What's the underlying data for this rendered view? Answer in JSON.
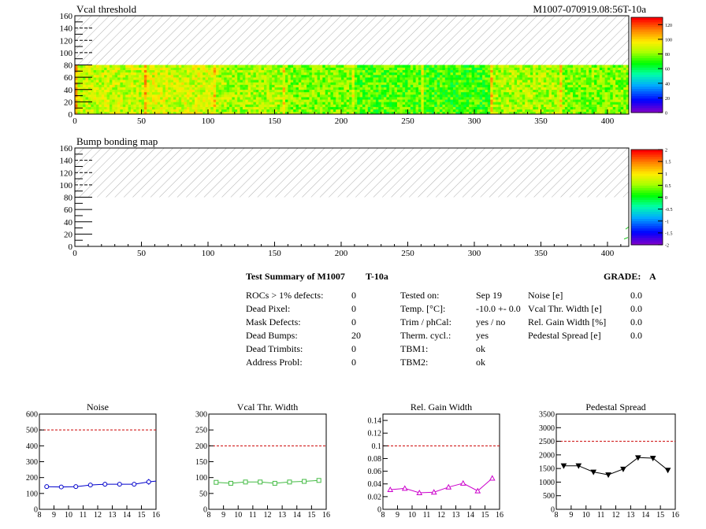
{
  "chart_data": [
    {
      "type": "heatmap",
      "title": "Vcal threshold",
      "run_label": "M1007-070919.08:56T-10a",
      "xlim": [
        0,
        416
      ],
      "ylim": [
        0,
        160
      ],
      "x_ticks": [
        0,
        50,
        100,
        150,
        200,
        250,
        300,
        350,
        400
      ],
      "y_ticks": [
        0,
        20,
        40,
        60,
        80,
        100,
        120,
        140,
        160
      ],
      "filled_rows": [
        0,
        80
      ],
      "roc_width": 52,
      "hatched_region": [
        80,
        160
      ],
      "colorbar_ticks": [
        0,
        20,
        40,
        60,
        80,
        100,
        120
      ],
      "colorbar_range": [
        0,
        130
      ],
      "roc_mean_levels": [
        88,
        90,
        84,
        80,
        74,
        72,
        84,
        80
      ]
    },
    {
      "type": "heatmap",
      "title": "Bump bonding map",
      "xlim": [
        0,
        416
      ],
      "ylim": [
        0,
        160
      ],
      "x_ticks": [
        0,
        50,
        100,
        150,
        200,
        250,
        300,
        350,
        400
      ],
      "y_ticks": [
        0,
        20,
        40,
        60,
        80,
        100,
        120,
        140,
        160
      ],
      "hatched_region": [
        80,
        160
      ],
      "colorbar_ticks": [
        -2,
        -1.5,
        -1,
        -0.5,
        0,
        0.5,
        1,
        1.5,
        2
      ],
      "colorbar_range": [
        -2,
        2
      ]
    },
    {
      "type": "line",
      "title": "Noise",
      "xlim": [
        8,
        16
      ],
      "ylim": [
        0,
        600
      ],
      "x_ticks": [
        8,
        9,
        10,
        11,
        12,
        13,
        14,
        15,
        16
      ],
      "y_ticks": [
        0,
        100,
        200,
        300,
        400,
        500,
        600
      ],
      "x": [
        8.5,
        9.5,
        10.5,
        11.5,
        12.5,
        13.5,
        14.5,
        15.5
      ],
      "y": [
        143,
        141,
        143,
        153,
        158,
        158,
        158,
        173
      ],
      "errors": [
        10,
        10,
        10,
        12,
        15,
        12,
        12,
        18
      ],
      "tail_value": 178,
      "limit": 500,
      "marker": "circle",
      "color": "#0000cc"
    },
    {
      "type": "line",
      "title": "Vcal Thr. Width",
      "xlim": [
        8,
        16
      ],
      "ylim": [
        0,
        300
      ],
      "x_ticks": [
        8,
        9,
        10,
        11,
        12,
        13,
        14,
        15,
        16
      ],
      "y_ticks": [
        0,
        50,
        100,
        150,
        200,
        250,
        300
      ],
      "x": [
        8.5,
        9.5,
        10.5,
        11.5,
        12.5,
        13.5,
        14.5,
        15.5
      ],
      "y": [
        85,
        82,
        86,
        86,
        82,
        86,
        88,
        91
      ],
      "limit": 200,
      "marker": "square",
      "color": "#44bb44"
    },
    {
      "type": "line",
      "title": "Rel. Gain Width",
      "xlim": [
        8,
        16
      ],
      "ylim": [
        0,
        0.15
      ],
      "x_ticks": [
        8,
        9,
        10,
        11,
        12,
        13,
        14,
        15,
        16
      ],
      "y_ticks": [
        0,
        0.02,
        0.04,
        0.06,
        0.08,
        0.1,
        0.12,
        0.14
      ],
      "x": [
        8.5,
        9.5,
        10.5,
        11.5,
        12.5,
        13.5,
        14.5,
        15.5
      ],
      "y": [
        0.031,
        0.033,
        0.026,
        0.027,
        0.035,
        0.041,
        0.029,
        0.049
      ],
      "limit": 0.1,
      "marker": "triangle-up",
      "color": "#cc00cc"
    },
    {
      "type": "line",
      "title": "Pedestal Spread",
      "xlim": [
        8,
        16
      ],
      "ylim": [
        0,
        3500
      ],
      "x_ticks": [
        8,
        9,
        10,
        11,
        12,
        13,
        14,
        15,
        16
      ],
      "y_ticks": [
        0,
        500,
        1000,
        1500,
        2000,
        2500,
        3000,
        3500
      ],
      "x": [
        8.5,
        9.5,
        10.5,
        11.5,
        12.5,
        13.5,
        14.5,
        15.5
      ],
      "y": [
        1600,
        1600,
        1370,
        1270,
        1480,
        1900,
        1880,
        1440
      ],
      "limit": 2500,
      "marker": "triangle-down",
      "color": "#000000"
    }
  ],
  "summary": {
    "title": "Test Summary of M1007",
    "temp_tag": "T-10a",
    "grade_label": "GRADE:",
    "grade": "A",
    "left_labels": [
      "ROCs > 1% defects:",
      "Dead Pixel:",
      "Mask Defects:",
      "Dead Bumps:",
      "Dead Trimbits:",
      "Address Probl:"
    ],
    "left_values": [
      "0",
      "0",
      "0",
      "20",
      "0",
      "0"
    ],
    "mid_labels": [
      "Tested on:",
      "Temp. [°C]:",
      "Trim / phCal:",
      "Therm. cycl.:",
      "TBM1:",
      "TBM2:"
    ],
    "mid_values": [
      "Sep 19",
      "-10.0 +- 0.0",
      "yes / no",
      "yes",
      "ok",
      "ok"
    ],
    "right_labels": [
      "Noise [e]",
      "Vcal Thr. Width [e]",
      "Rel. Gain Width [%]",
      "Pedestal Spread [e]"
    ],
    "right_values": [
      "0.0",
      "0.0",
      "0.0",
      "0.0"
    ]
  },
  "colors": {
    "limit_line": "#cc0000",
    "hatch": "#a0a0a0"
  }
}
